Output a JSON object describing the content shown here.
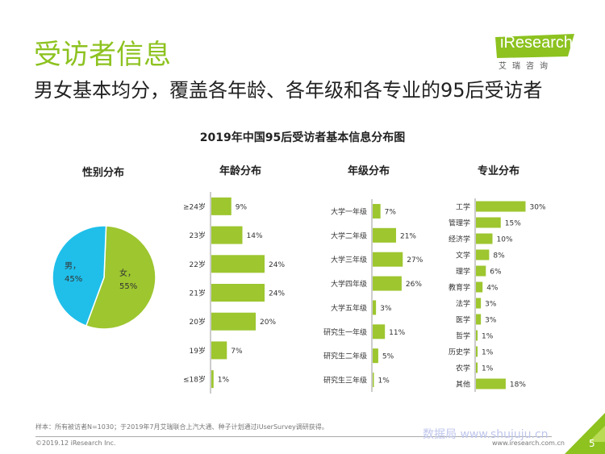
{
  "header": {
    "title": "受访者信息",
    "subtitle": "男女基本均分，覆盖各年龄、各年级和各专业的95后受访者"
  },
  "logo": {
    "word": "iResearch",
    "sub": "艾瑞咨询"
  },
  "chart_title": "2019年中国95后受访者基本信息分布图",
  "colors": {
    "green": "#9dc62f",
    "cyan": "#1fbfea",
    "brand": "#8dc21f",
    "axis": "#999999"
  },
  "chart_data": [
    {
      "type": "pie",
      "title": "性别分布",
      "slices": [
        {
          "label": "男，",
          "pct_label": "45%",
          "value": 45,
          "color": "#1fbfea"
        },
        {
          "label": "女，",
          "pct_label": "55%",
          "value": 55,
          "color": "#9dc62f"
        }
      ]
    },
    {
      "type": "bar",
      "orientation": "horizontal",
      "title": "年龄分布",
      "categories": [
        "≥24岁",
        "23岁",
        "22岁",
        "21岁",
        "20岁",
        "19岁",
        "≤18岁"
      ],
      "values": [
        9,
        14,
        24,
        24,
        20,
        7,
        1
      ],
      "labels": [
        "9%",
        "14%",
        "24%",
        "24%",
        "20%",
        "7%",
        "1%"
      ],
      "unit": "%"
    },
    {
      "type": "bar",
      "orientation": "horizontal",
      "title": "年级分布",
      "categories": [
        "大学一年级",
        "大学二年级",
        "大学三年级",
        "大学四年级",
        "大学五年级",
        "研究生一年级",
        "研究生二年级",
        "研究生三年级"
      ],
      "values": [
        7,
        21,
        27,
        26,
        3,
        11,
        5,
        1
      ],
      "labels": [
        "7%",
        "21%",
        "27%",
        "26%",
        "3%",
        "11%",
        "5%",
        "1%"
      ],
      "unit": "%"
    },
    {
      "type": "bar",
      "orientation": "horizontal",
      "title": "专业分布",
      "categories": [
        "工学",
        "管理学",
        "经济学",
        "文学",
        "理学",
        "教育学",
        "法学",
        "医学",
        "哲学",
        "历史学",
        "农学",
        "其他"
      ],
      "values": [
        30,
        15,
        10,
        8,
        6,
        4,
        3,
        3,
        1,
        1,
        1,
        18
      ],
      "labels": [
        "30%",
        "15%",
        "10%",
        "8%",
        "6%",
        "4%",
        "3%",
        "3%",
        "1%",
        "1%",
        "1%",
        "18%"
      ],
      "unit": "%"
    }
  ],
  "footer": {
    "sample_note": "样本：所有被访者N=1030；于2019年7月艾瑞联合上汽大通、种子计划通过iUserSurvey调研获得。",
    "copyright": "©2019.12 iResearch Inc.",
    "website": "www.iresearch.com.cn",
    "watermark": "数据局 www.shujuju.cn",
    "page_number": "5"
  }
}
